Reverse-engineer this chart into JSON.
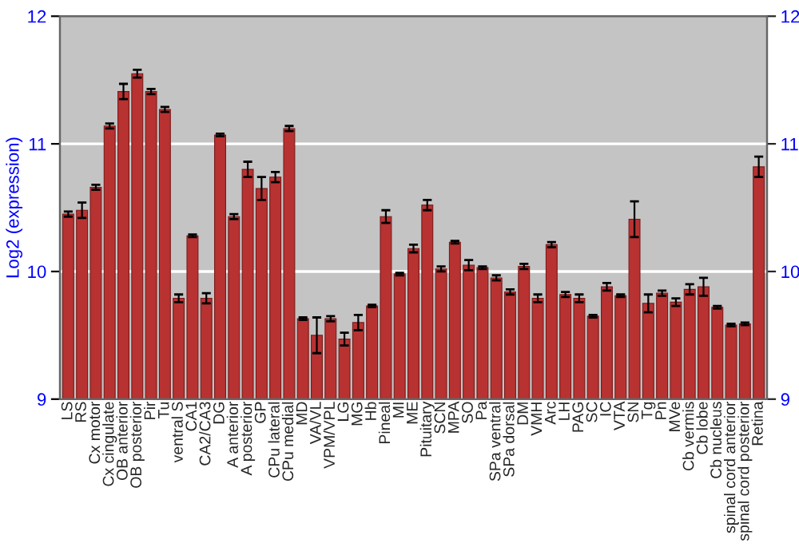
{
  "chart_data": {
    "type": "bar",
    "ylabel": "Log2 (expression)",
    "categories": [
      "LS",
      "RS",
      "Cx motor",
      "Cx cingulate",
      "OB anterior",
      "OB posterior",
      "Pir",
      "Tu",
      "ventral S",
      "CA1",
      "CA2/CA3",
      "DG",
      "A anterior",
      "A posterior",
      "GP",
      "CPu lateral",
      "CPu medial",
      "MD",
      "VA/VL",
      "VPM/VPL",
      "LG",
      "MG",
      "Hb",
      "Pineal",
      "MI",
      "ME",
      "Pituitary",
      "SCN",
      "MPA",
      "SO",
      "Pa",
      "SPa ventral",
      "SPa dorsal",
      "DM",
      "VMH",
      "Arc",
      "LH",
      "PAG",
      "SC",
      "IC",
      "VTA",
      "SN",
      "Tg",
      "Pn",
      "MVe",
      "Cb vermis",
      "Cb lobe",
      "Cb nucleus",
      "spinal cord anterior",
      "spinal cord posterior",
      "Retina"
    ],
    "values": [
      10.45,
      10.48,
      10.66,
      11.14,
      11.41,
      11.55,
      11.41,
      11.27,
      9.79,
      10.28,
      9.79,
      11.07,
      10.43,
      10.8,
      10.65,
      10.74,
      11.12,
      9.63,
      9.5,
      9.63,
      9.47,
      9.6,
      9.73,
      10.43,
      9.98,
      10.18,
      10.52,
      10.02,
      10.23,
      10.05,
      10.03,
      9.95,
      9.84,
      10.04,
      9.79,
      10.21,
      9.82,
      9.79,
      9.65,
      9.88,
      9.81,
      10.41,
      9.75,
      9.83,
      9.76,
      9.86,
      9.88,
      9.72,
      9.58,
      9.59,
      10.82
    ],
    "errors": [
      0.02,
      0.06,
      0.02,
      0.02,
      0.06,
      0.03,
      0.02,
      0.02,
      0.03,
      0.01,
      0.04,
      0.01,
      0.02,
      0.06,
      0.09,
      0.04,
      0.02,
      0.01,
      0.14,
      0.02,
      0.05,
      0.06,
      0.01,
      0.05,
      0.01,
      0.03,
      0.04,
      0.02,
      0.01,
      0.04,
      0.01,
      0.02,
      0.02,
      0.02,
      0.03,
      0.02,
      0.02,
      0.03,
      0.01,
      0.03,
      0.01,
      0.14,
      0.07,
      0.02,
      0.03,
      0.04,
      0.07,
      0.01,
      0.01,
      0.01,
      0.08
    ],
    "color": "#b83232",
    "ylim": [
      9,
      12
    ],
    "yticks": [
      9,
      10,
      11,
      12
    ],
    "y2lim": [
      9,
      12
    ],
    "y2ticks": [
      9,
      10,
      11,
      12
    ],
    "grid": "y"
  }
}
